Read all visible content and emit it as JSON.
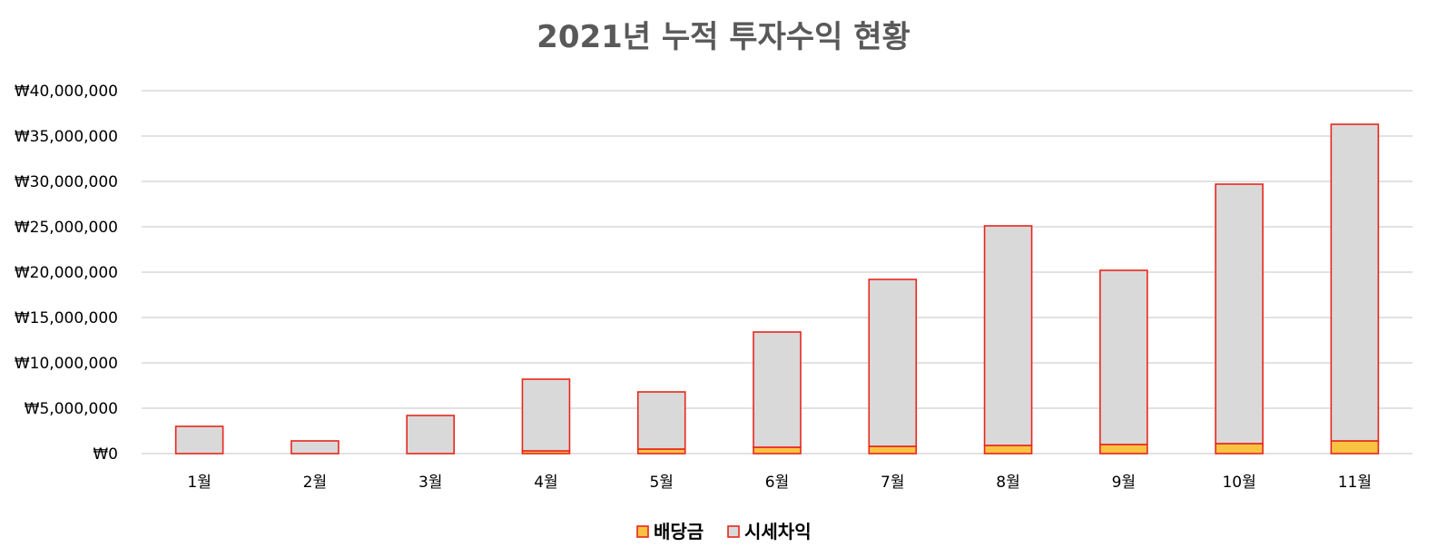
{
  "chart_data": {
    "type": "bar",
    "stacked": true,
    "title": "2021년 누적 투자수익 현황",
    "xlabel": "",
    "ylabel": "",
    "categories": [
      "1월",
      "2월",
      "3월",
      "4월",
      "5월",
      "6월",
      "7월",
      "8월",
      "9월",
      "10월",
      "11월"
    ],
    "series": [
      {
        "name": "배당금",
        "color": "#f9c342",
        "values": [
          0,
          0,
          0,
          300000,
          500000,
          700000,
          800000,
          900000,
          1000000,
          1100000,
          1400000
        ]
      },
      {
        "name": "시세차익",
        "color": "#d9d9d9",
        "values": [
          3000000,
          1400000,
          4200000,
          7900000,
          6300000,
          12700000,
          18400000,
          24200000,
          19200000,
          28600000,
          34900000
        ]
      }
    ],
    "bar_border_color": "#e8261c",
    "ylim": [
      0,
      40000000
    ],
    "yticks": [
      "₩0",
      "₩5,000,000",
      "₩10,000,000",
      "₩15,000,000",
      "₩20,000,000",
      "₩25,000,000",
      "₩30,000,000",
      "₩35,000,000",
      "₩40,000,000"
    ],
    "grid": true,
    "legend_position": "bottom-center"
  }
}
